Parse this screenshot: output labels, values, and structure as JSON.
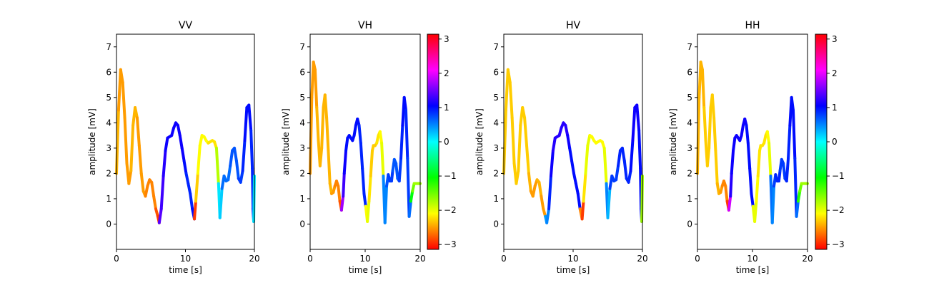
{
  "chart_data": [
    {
      "type": "line",
      "title": "VV",
      "xlabel": "time [s]",
      "ylabel": "amplitude [mV]",
      "xlim": [
        0,
        20
      ],
      "ylim": [
        -1,
        7.5
      ],
      "xticks": [
        "0",
        "10",
        "20"
      ],
      "yticks": [
        "0",
        "1",
        "2",
        "3",
        "4",
        "5",
        "6",
        "7"
      ],
      "colorbar": false,
      "color_encoding": "phase [rad], hsv colormap",
      "series": [
        {
          "x": [
            0,
            0.3,
            0.6,
            0.9,
            1.2,
            1.5,
            1.8,
            2.1,
            2.4,
            2.7,
            3.0,
            3.3,
            3.6,
            3.9,
            4.2,
            4.5,
            4.8,
            5.1,
            5.4,
            5.7,
            6.0,
            6.2,
            6.5,
            6.8,
            7.1,
            7.4,
            7.7,
            8.0,
            8.3,
            8.6,
            8.9,
            9.2,
            9.5,
            9.8,
            10.1,
            10.4,
            10.7,
            11.0,
            11.3,
            11.5,
            11.8,
            12.1,
            12.4,
            12.7,
            13.0,
            13.3,
            13.6,
            13.9,
            14.2,
            14.5,
            14.8,
            15.0,
            15.3,
            15.6,
            15.9,
            16.2,
            16.5,
            16.8,
            17.1,
            17.4,
            17.7,
            18.0,
            18.3,
            18.6,
            18.9,
            19.2,
            19.5,
            19.7,
            19.8,
            19.9,
            20.0
          ],
          "y": [
            2.0,
            4.5,
            6.1,
            5.6,
            4.2,
            2.4,
            1.6,
            2.1,
            3.9,
            4.6,
            4.2,
            3.1,
            2.0,
            1.3,
            1.1,
            1.5,
            1.75,
            1.65,
            1.1,
            0.6,
            0.3,
            0.05,
            0.6,
            1.9,
            2.9,
            3.4,
            3.45,
            3.5,
            3.8,
            4.0,
            3.9,
            3.5,
            3.0,
            2.5,
            2.0,
            1.6,
            1.2,
            0.6,
            0.2,
            0.9,
            2.0,
            3.1,
            3.5,
            3.45,
            3.3,
            3.2,
            3.25,
            3.3,
            3.25,
            3.0,
            1.6,
            0.25,
            1.4,
            1.9,
            1.7,
            1.75,
            2.3,
            2.9,
            3.0,
            2.5,
            1.8,
            1.65,
            2.1,
            3.3,
            4.6,
            4.7,
            3.7,
            2.2,
            0.6,
            0.1,
            1.9
          ],
          "phase": [
            -2.4,
            -2.5,
            -2.5,
            -2.5,
            -2.5,
            -2.5,
            -2.5,
            -2.4,
            -2.4,
            -2.4,
            -2.5,
            -2.5,
            -2.5,
            -2.5,
            -2.6,
            -2.6,
            -2.6,
            -2.6,
            -2.6,
            -2.8,
            -2.9,
            1.4,
            1.3,
            1.2,
            1.1,
            1.1,
            1.1,
            1.1,
            1.1,
            1.1,
            1.1,
            1.1,
            1.1,
            1.0,
            0.9,
            0.9,
            0.9,
            1.0,
            -2.9,
            -2.3,
            -2.1,
            -2.1,
            -2.1,
            -2.1,
            -2.1,
            -2.2,
            -2.2,
            -2.2,
            -2.2,
            -1.8,
            0.1,
            0.2,
            0.6,
            0.6,
            0.6,
            0.6,
            0.7,
            0.7,
            0.7,
            0.7,
            0.8,
            0.8,
            0.9,
            1.0,
            1.0,
            1.0,
            0.9,
            0.9,
            1.0,
            0.1,
            -2.0
          ]
        }
      ]
    },
    {
      "type": "line",
      "title": "VH",
      "xlabel": "time [s]",
      "ylabel": "amplitude [mV]",
      "xlim": [
        0,
        20
      ],
      "ylim": [
        -1,
        7.5
      ],
      "xticks": [
        "0",
        "10",
        "20"
      ],
      "yticks": [
        "0",
        "1",
        "2",
        "3",
        "4",
        "5",
        "6",
        "7"
      ],
      "colorbar": true,
      "colorbar_ticks": [
        "−3",
        "−2",
        "−1",
        "0",
        "1",
        "2",
        "3"
      ],
      "color_encoding": "phase [rad], hsv colormap",
      "series": [
        {
          "x": [
            0,
            0.3,
            0.6,
            0.9,
            1.2,
            1.5,
            1.8,
            2.1,
            2.4,
            2.7,
            3.0,
            3.3,
            3.6,
            3.9,
            4.2,
            4.5,
            4.8,
            5.1,
            5.4,
            5.7,
            6.0,
            6.2,
            6.5,
            6.8,
            7.1,
            7.4,
            7.7,
            8.0,
            8.3,
            8.6,
            8.9,
            9.2,
            9.5,
            9.8,
            10.1,
            10.4,
            10.7,
            11.0,
            11.3,
            11.5,
            11.8,
            12.1,
            12.4,
            12.7,
            13.0,
            13.3,
            13.6,
            13.9,
            14.2,
            14.5,
            14.8,
            15.0,
            15.3,
            15.6,
            15.9,
            16.2,
            16.5,
            16.8,
            17.1,
            17.4,
            17.7,
            18.0,
            18.3,
            18.6,
            18.9,
            19.2,
            19.5,
            19.7,
            19.8,
            19.9,
            20.0
          ],
          "y": [
            2.0,
            5.0,
            6.4,
            6.1,
            4.6,
            3.3,
            2.3,
            3.0,
            4.6,
            5.1,
            4.2,
            2.9,
            1.6,
            1.2,
            1.25,
            1.5,
            1.7,
            1.5,
            0.9,
            0.55,
            1.1,
            2.0,
            2.9,
            3.4,
            3.5,
            3.4,
            3.3,
            3.5,
            3.9,
            4.15,
            3.9,
            3.2,
            2.2,
            1.2,
            0.7,
            0.1,
            0.9,
            1.9,
            2.9,
            3.1,
            3.1,
            3.2,
            3.5,
            3.65,
            3.2,
            1.9,
            0.05,
            1.5,
            1.95,
            1.7,
            1.7,
            2.1,
            2.55,
            2.4,
            1.8,
            1.7,
            2.6,
            3.9,
            5.0,
            4.5,
            2.6,
            0.3,
            0.9,
            1.3,
            1.6,
            1.6,
            1.6,
            1.6,
            1.6,
            1.6,
            1.6
          ],
          "phase": [
            -2.5,
            -2.5,
            -2.5,
            -2.5,
            -2.4,
            -2.4,
            -2.4,
            -2.4,
            -2.4,
            -2.4,
            -2.4,
            -2.4,
            -2.4,
            -2.5,
            -2.5,
            -2.6,
            -2.6,
            -2.6,
            -2.8,
            1.7,
            1.3,
            1.1,
            1.0,
            1.0,
            1.0,
            1.0,
            1.0,
            1.0,
            1.0,
            1.0,
            0.9,
            0.9,
            0.9,
            0.9,
            -2.1,
            -2.0,
            -2.2,
            -2.3,
            -2.3,
            -2.3,
            -2.3,
            -2.2,
            -2.2,
            -2.1,
            -2.0,
            0.5,
            0.5,
            0.7,
            0.8,
            0.8,
            0.8,
            0.7,
            0.7,
            0.7,
            0.7,
            0.8,
            0.9,
            1.0,
            1.0,
            0.9,
            0.8,
            0.6,
            -1.0,
            -1.5,
            -1.7,
            -1.7,
            -1.7,
            -1.7,
            -1.7,
            -1.7,
            -1.7
          ]
        }
      ]
    },
    {
      "type": "line",
      "title": "HV",
      "xlabel": "time [s]",
      "ylabel": "amplitude [mV]",
      "xlim": [
        0,
        20
      ],
      "ylim": [
        -1,
        7.5
      ],
      "xticks": [
        "0",
        "10",
        "20"
      ],
      "yticks": [
        "0",
        "1",
        "2",
        "3",
        "4",
        "5",
        "6",
        "7"
      ],
      "colorbar": false,
      "color_encoding": "phase [rad], hsv colormap",
      "series": [
        {
          "x": [
            0,
            0.3,
            0.6,
            0.9,
            1.2,
            1.5,
            1.8,
            2.1,
            2.4,
            2.7,
            3.0,
            3.3,
            3.6,
            3.9,
            4.2,
            4.5,
            4.8,
            5.1,
            5.4,
            5.7,
            6.0,
            6.2,
            6.5,
            6.8,
            7.1,
            7.4,
            7.7,
            8.0,
            8.3,
            8.6,
            8.9,
            9.2,
            9.5,
            9.8,
            10.1,
            10.4,
            10.7,
            11.0,
            11.3,
            11.5,
            11.8,
            12.1,
            12.4,
            12.7,
            13.0,
            13.3,
            13.6,
            13.9,
            14.2,
            14.5,
            14.8,
            15.0,
            15.3,
            15.6,
            15.9,
            16.2,
            16.5,
            16.8,
            17.1,
            17.4,
            17.7,
            18.0,
            18.3,
            18.6,
            18.9,
            19.2,
            19.5,
            19.7,
            19.8,
            19.9,
            20.0
          ],
          "y": [
            2.0,
            4.5,
            6.1,
            5.6,
            4.2,
            2.4,
            1.6,
            2.1,
            3.9,
            4.6,
            4.2,
            3.1,
            2.0,
            1.3,
            1.1,
            1.5,
            1.75,
            1.65,
            1.1,
            0.6,
            0.3,
            0.05,
            0.6,
            1.9,
            2.9,
            3.4,
            3.45,
            3.5,
            3.8,
            4.0,
            3.9,
            3.5,
            3.0,
            2.5,
            2.0,
            1.6,
            1.2,
            0.6,
            0.2,
            0.9,
            2.0,
            3.1,
            3.5,
            3.45,
            3.3,
            3.2,
            3.25,
            3.3,
            3.25,
            3.0,
            1.6,
            0.25,
            1.4,
            1.9,
            1.7,
            1.75,
            2.3,
            2.9,
            3.0,
            2.5,
            1.8,
            1.65,
            2.1,
            3.3,
            4.6,
            4.7,
            3.7,
            2.2,
            0.6,
            0.1,
            1.9
          ],
          "phase": [
            -2.3,
            -2.3,
            -2.3,
            -2.3,
            -2.3,
            -2.3,
            -2.3,
            -2.3,
            -2.3,
            -2.3,
            -2.3,
            -2.3,
            -2.4,
            -2.5,
            -2.5,
            -2.5,
            -2.4,
            -2.4,
            -2.5,
            -2.5,
            0.4,
            0.5,
            0.9,
            1.1,
            1.2,
            1.2,
            1.2,
            1.2,
            1.2,
            1.2,
            1.2,
            1.1,
            1.0,
            1.0,
            1.0,
            1.0,
            1.0,
            -2.6,
            -2.9,
            -2.2,
            -2.0,
            -2.0,
            -2.1,
            -2.1,
            -2.1,
            -2.1,
            -2.1,
            -2.1,
            -2.1,
            -2.0,
            0.5,
            0.3,
            0.8,
            0.8,
            0.8,
            0.8,
            0.9,
            0.9,
            0.9,
            0.9,
            0.9,
            0.9,
            1.0,
            1.1,
            1.1,
            1.1,
            1.0,
            1.0,
            1.0,
            -1.7,
            -1.8
          ]
        }
      ]
    },
    {
      "type": "line",
      "title": "HH",
      "xlabel": "time [s]",
      "ylabel": "amplitude [mV]",
      "xlim": [
        0,
        20
      ],
      "ylim": [
        -1,
        7.5
      ],
      "xticks": [
        "0",
        "10",
        "20"
      ],
      "yticks": [
        "0",
        "1",
        "2",
        "3",
        "4",
        "5",
        "6",
        "7"
      ],
      "colorbar": true,
      "colorbar_ticks": [
        "−3",
        "−2",
        "−1",
        "0",
        "1",
        "2",
        "3"
      ],
      "color_encoding": "phase [rad], hsv colormap",
      "series": [
        {
          "x": [
            0,
            0.3,
            0.6,
            0.9,
            1.2,
            1.5,
            1.8,
            2.1,
            2.4,
            2.7,
            3.0,
            3.3,
            3.6,
            3.9,
            4.2,
            4.5,
            4.8,
            5.1,
            5.4,
            5.7,
            6.0,
            6.2,
            6.5,
            6.8,
            7.1,
            7.4,
            7.7,
            8.0,
            8.3,
            8.6,
            8.9,
            9.2,
            9.5,
            9.8,
            10.1,
            10.4,
            10.7,
            11.0,
            11.3,
            11.5,
            11.8,
            12.1,
            12.4,
            12.7,
            13.0,
            13.3,
            13.6,
            13.9,
            14.2,
            14.5,
            14.8,
            15.0,
            15.3,
            15.6,
            15.9,
            16.2,
            16.5,
            16.8,
            17.1,
            17.4,
            17.7,
            18.0,
            18.3,
            18.6,
            18.9,
            19.2,
            19.5,
            19.7,
            19.8,
            19.9,
            20.0
          ],
          "y": [
            2.0,
            5.0,
            6.4,
            6.1,
            4.6,
            3.3,
            2.3,
            3.0,
            4.6,
            5.1,
            4.2,
            2.9,
            1.6,
            1.2,
            1.25,
            1.5,
            1.7,
            1.5,
            0.9,
            0.55,
            1.1,
            2.0,
            2.9,
            3.4,
            3.5,
            3.4,
            3.3,
            3.5,
            3.9,
            4.15,
            3.9,
            3.2,
            2.2,
            1.2,
            0.7,
            0.1,
            0.9,
            1.9,
            2.9,
            3.1,
            3.1,
            3.2,
            3.5,
            3.65,
            3.2,
            1.9,
            0.05,
            1.5,
            1.95,
            1.7,
            1.7,
            2.1,
            2.55,
            2.4,
            1.8,
            1.7,
            2.6,
            3.9,
            5.0,
            4.5,
            2.6,
            0.3,
            0.9,
            1.3,
            1.6,
            1.6,
            1.6,
            1.6,
            1.6,
            1.6,
            1.6
          ],
          "phase": [
            -2.4,
            -2.4,
            -2.4,
            -2.4,
            -2.3,
            -2.3,
            -2.3,
            -2.3,
            -2.3,
            -2.3,
            -2.3,
            -2.3,
            -2.4,
            -2.4,
            -2.5,
            -2.6,
            -2.6,
            -2.6,
            -2.9,
            1.9,
            1.2,
            1.1,
            1.1,
            1.1,
            1.1,
            1.1,
            1.1,
            1.1,
            1.1,
            1.1,
            1.0,
            1.0,
            1.0,
            1.0,
            -2.0,
            -2.0,
            -2.1,
            -2.2,
            -2.2,
            -2.2,
            -2.2,
            -2.2,
            -2.2,
            -2.1,
            -2.0,
            0.6,
            0.5,
            0.8,
            0.9,
            0.9,
            0.9,
            0.8,
            0.8,
            0.8,
            0.8,
            0.9,
            0.9,
            1.0,
            1.0,
            1.0,
            0.9,
            0.6,
            -1.2,
            -1.5,
            -1.7,
            -1.7,
            -1.7,
            -1.7,
            -1.7,
            -1.7,
            -1.7
          ]
        }
      ]
    }
  ]
}
